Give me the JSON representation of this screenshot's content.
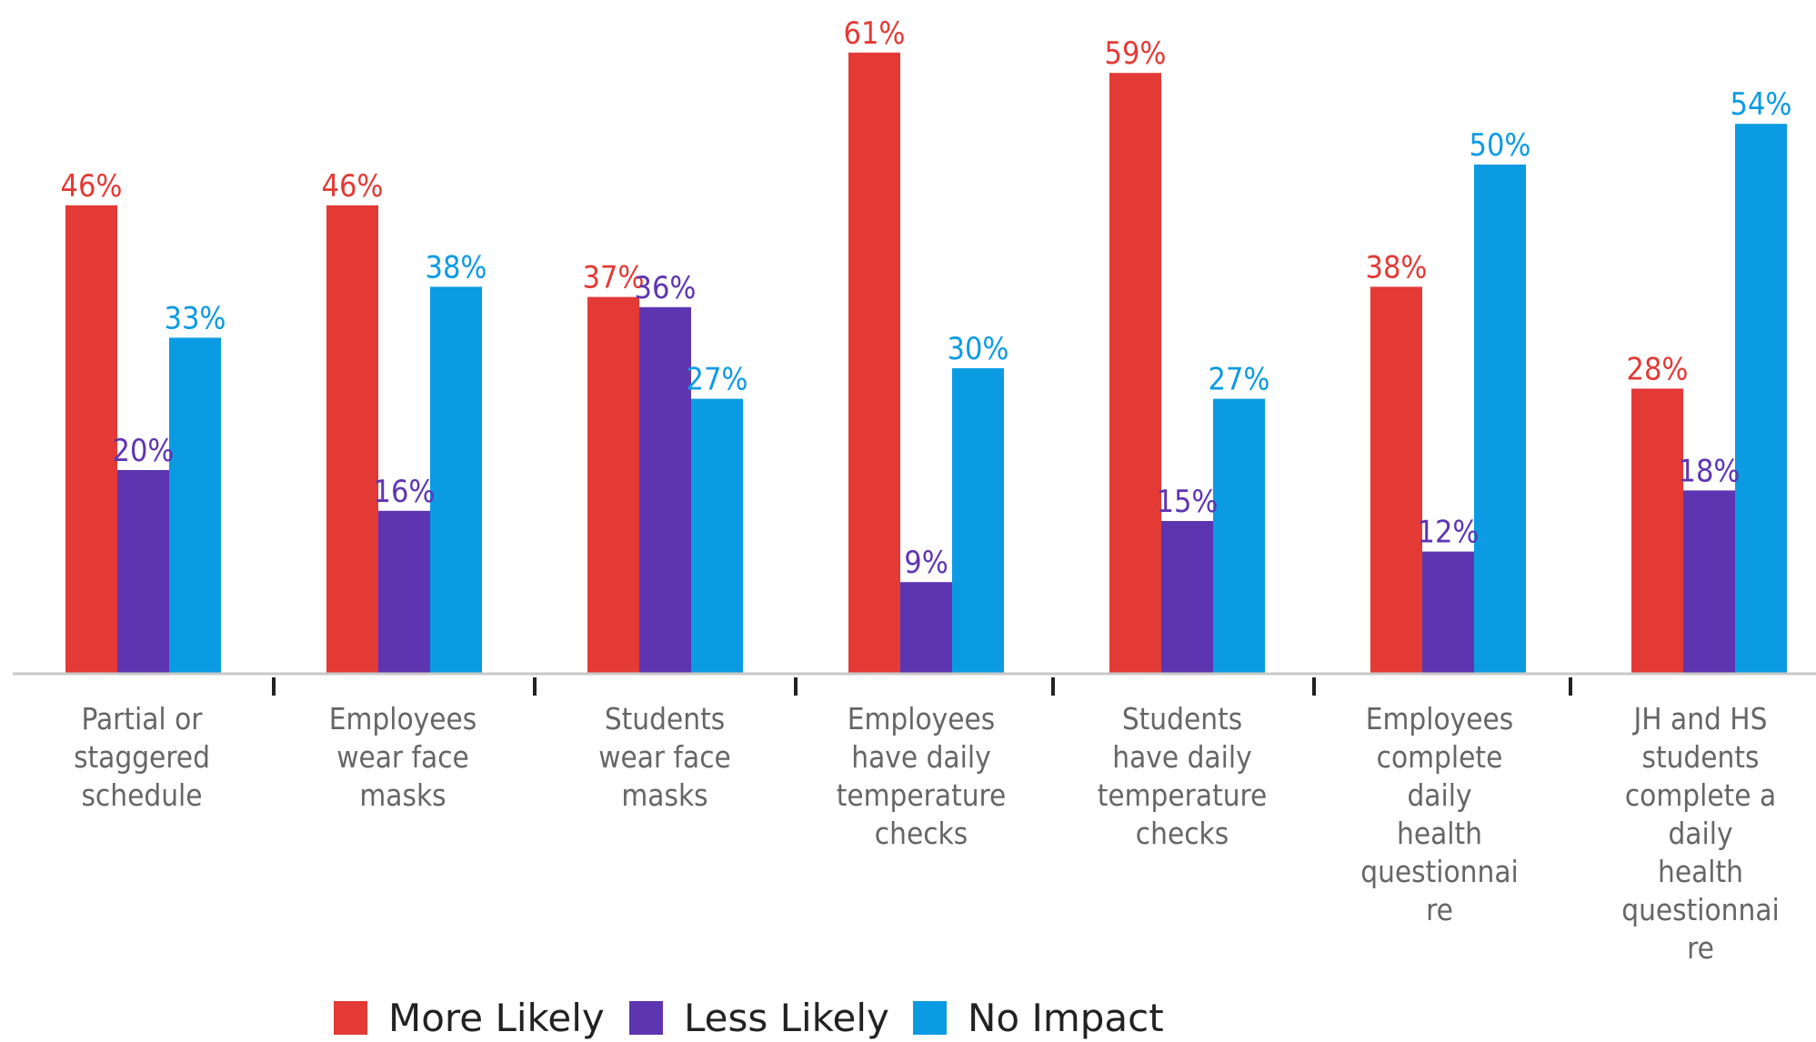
{
  "chart_data": {
    "type": "bar",
    "categories": [
      [
        "Partial or",
        "staggered",
        "schedule"
      ],
      [
        "Employees",
        "wear face",
        "masks"
      ],
      [
        "Students",
        "wear face",
        "masks"
      ],
      [
        "Employees",
        "have daily",
        "temperature",
        "checks"
      ],
      [
        "Students",
        "have daily",
        "temperature",
        "checks"
      ],
      [
        "Employees",
        "complete",
        "daily",
        "health",
        "questionnai",
        "re"
      ],
      [
        "JH and HS",
        "students",
        "complete a",
        "daily",
        "health",
        "questionnai",
        "re"
      ]
    ],
    "series": [
      {
        "name": "More Likely",
        "color": "#e33a36",
        "values": [
          46,
          46,
          37,
          61,
          59,
          38,
          28
        ]
      },
      {
        "name": "Less Likely",
        "color": "#5e35b1",
        "values": [
          20,
          16,
          36,
          9,
          15,
          12,
          18
        ]
      },
      {
        "name": "No Impact",
        "color": "#0b9be3",
        "values": [
          33,
          38,
          27,
          30,
          27,
          50,
          54
        ]
      }
    ],
    "value_suffix": "%",
    "title": "",
    "xlabel": "",
    "ylabel": "",
    "ylim": [
      0,
      61
    ],
    "grid": false,
    "legend_position": "bottom-center"
  }
}
